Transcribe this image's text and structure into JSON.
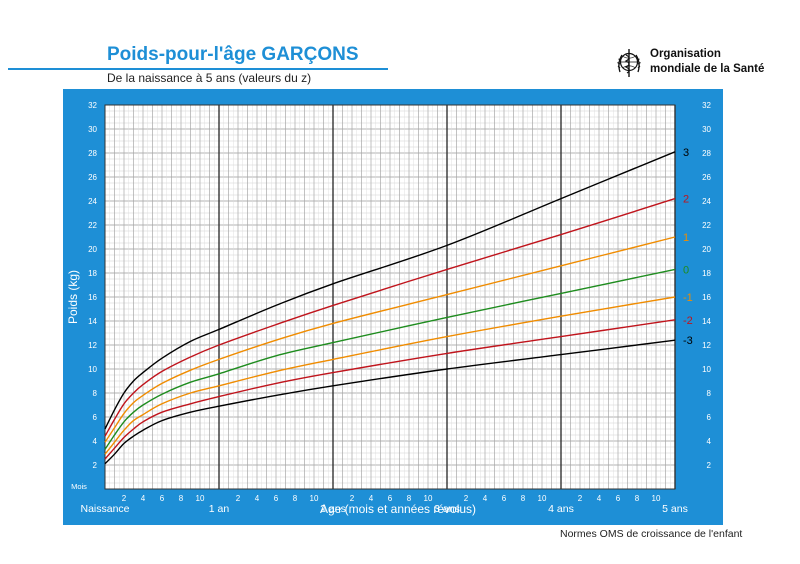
{
  "page": {
    "title": "Poids-pour-l'âge  GARÇONS",
    "subtitle": "De la naissance à 5 ans (valeurs du z)",
    "organization": {
      "line1": "Organisation",
      "line2": "mondiale de la Santé",
      "emblem": "who-emblem-icon"
    },
    "footer": "Normes OMS de croissance de l'enfant"
  },
  "colors": {
    "brand_blue": "#1e8fd6",
    "z3": "#000000",
    "z2": "#c0141c",
    "z1": "#f08c00",
    "z0": "#1e8c1e"
  },
  "chart_data": {
    "type": "line",
    "title": "Poids-pour-l'âge  GARÇONS",
    "subtitle": "De la naissance à 5 ans (valeurs du z)",
    "xlabel": "Age (mois et années révolus)",
    "ylabel": "Poids (kg)",
    "x_unit_label": "Mois",
    "xlim": [
      0,
      60
    ],
    "ylim": [
      0,
      32
    ],
    "y_ticks": [
      2,
      4,
      6,
      8,
      10,
      12,
      14,
      16,
      18,
      20,
      22,
      24,
      26,
      28,
      30,
      32
    ],
    "x_ticks": [
      {
        "x": 2,
        "label": "2"
      },
      {
        "x": 4,
        "label": "4"
      },
      {
        "x": 6,
        "label": "6"
      },
      {
        "x": 8,
        "label": "8"
      },
      {
        "x": 10,
        "label": "10"
      },
      {
        "x": 14,
        "label": "2"
      },
      {
        "x": 16,
        "label": "4"
      },
      {
        "x": 18,
        "label": "6"
      },
      {
        "x": 20,
        "label": "8"
      },
      {
        "x": 22,
        "label": "10"
      },
      {
        "x": 26,
        "label": "2"
      },
      {
        "x": 28,
        "label": "4"
      },
      {
        "x": 30,
        "label": "6"
      },
      {
        "x": 32,
        "label": "8"
      },
      {
        "x": 34,
        "label": "10"
      },
      {
        "x": 38,
        "label": "2"
      },
      {
        "x": 40,
        "label": "4"
      },
      {
        "x": 42,
        "label": "6"
      },
      {
        "x": 44,
        "label": "8"
      },
      {
        "x": 46,
        "label": "10"
      },
      {
        "x": 50,
        "label": "2"
      },
      {
        "x": 52,
        "label": "4"
      },
      {
        "x": 54,
        "label": "6"
      },
      {
        "x": 56,
        "label": "8"
      },
      {
        "x": 58,
        "label": "10"
      }
    ],
    "x_major_labels": [
      {
        "x": 0,
        "label": "Naissance"
      },
      {
        "x": 12,
        "label": "1 an"
      },
      {
        "x": 24,
        "label": "2 ans"
      },
      {
        "x": 36,
        "label": "3 ans"
      },
      {
        "x": 48,
        "label": "4 ans"
      },
      {
        "x": 60,
        "label": "5 ans"
      }
    ],
    "grid": true,
    "x": [
      0,
      1,
      2,
      3,
      4,
      6,
      9,
      12,
      18,
      24,
      36,
      48,
      60
    ],
    "series": [
      {
        "name": "3",
        "color": "#000000",
        "values": [
          5.0,
          6.6,
          8.0,
          9.0,
          9.7,
          10.9,
          12.3,
          13.3,
          15.3,
          17.1,
          20.3,
          24.2,
          28.1
        ]
      },
      {
        "name": "2",
        "color": "#c0141c",
        "values": [
          4.4,
          5.8,
          7.1,
          8.0,
          8.7,
          9.8,
          11.0,
          12.0,
          13.7,
          15.3,
          18.3,
          21.2,
          24.2
        ]
      },
      {
        "name": "1",
        "color": "#f08c00",
        "values": [
          3.9,
          5.1,
          6.3,
          7.2,
          7.8,
          8.8,
          9.9,
          10.8,
          12.4,
          13.8,
          16.2,
          18.6,
          21.0
        ]
      },
      {
        "name": "0",
        "color": "#1e8c1e",
        "values": [
          3.3,
          4.5,
          5.6,
          6.4,
          7.0,
          7.9,
          8.9,
          9.6,
          11.1,
          12.2,
          14.3,
          16.3,
          18.3
        ]
      },
      {
        "name": "-1",
        "color": "#f08c00",
        "values": [
          2.9,
          3.9,
          4.9,
          5.7,
          6.2,
          7.1,
          8.0,
          8.6,
          9.8,
          10.8,
          12.7,
          14.4,
          16.0
        ]
      },
      {
        "name": "-2",
        "color": "#c0141c",
        "values": [
          2.5,
          3.4,
          4.3,
          5.0,
          5.6,
          6.4,
          7.1,
          7.7,
          8.8,
          9.7,
          11.3,
          12.7,
          14.1
        ]
      },
      {
        "name": "-3",
        "color": "#000000",
        "values": [
          2.1,
          2.9,
          3.8,
          4.4,
          4.9,
          5.7,
          6.4,
          6.9,
          7.8,
          8.6,
          10.0,
          11.2,
          12.4
        ]
      }
    ]
  }
}
